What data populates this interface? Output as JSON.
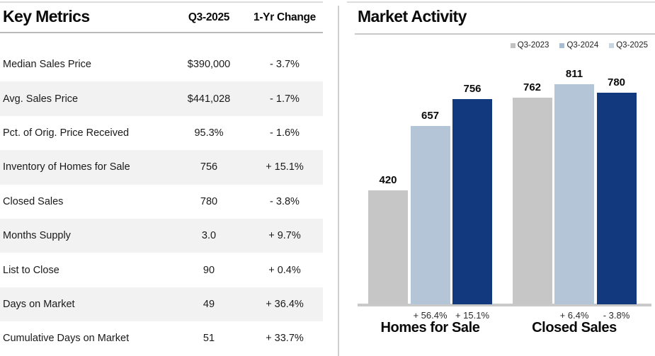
{
  "key_metrics": {
    "title": "Key Metrics",
    "columns": [
      "Q3-2025",
      "1-Yr Change"
    ],
    "rows": [
      {
        "label": "Median Sales Price",
        "value": "$390,000",
        "change": "- 3.7%"
      },
      {
        "label": "Avg. Sales Price",
        "value": "$441,028",
        "change": "- 1.7%"
      },
      {
        "label": "Pct. of Orig. Price Received",
        "value": "95.3%",
        "change": "- 1.6%"
      },
      {
        "label": "Inventory of Homes for Sale",
        "value": "756",
        "change": "+ 15.1%"
      },
      {
        "label": "Closed Sales",
        "value": "780",
        "change": "- 3.8%"
      },
      {
        "label": "Months Supply",
        "value": "3.0",
        "change": "+ 9.7%"
      },
      {
        "label": "List to Close",
        "value": "90",
        "change": "+ 0.4%"
      },
      {
        "label": "Days on Market",
        "value": "49",
        "change": "+ 36.4%"
      },
      {
        "label": "Cumulative Days on Market",
        "value": "51",
        "change": "+ 33.7%"
      }
    ],
    "stripe_color": "#f2f2f2"
  },
  "market_activity": {
    "title": "Market Activity",
    "legend": {
      "items": [
        "Q3-2023",
        "Q3-2024",
        "Q3-2025"
      ],
      "swatch_colors": [
        "#c2c2c2",
        "#a9bdd0",
        "#c9d5df"
      ]
    },
    "chart_data": {
      "type": "bar",
      "categories": [
        "Homes for Sale",
        "Closed Sales"
      ],
      "series": [
        {
          "name": "Q3-2023",
          "color": "#c6c6c6",
          "values": [
            420,
            762
          ]
        },
        {
          "name": "Q3-2024",
          "color": "#b3c5d6",
          "values": [
            657,
            811
          ]
        },
        {
          "name": "Q3-2025",
          "color": "#12397e",
          "values": [
            756,
            780
          ]
        }
      ],
      "pct_change_labels": [
        [
          "",
          "+ 56.4%",
          "+ 15.1%"
        ],
        [
          "",
          "+ 6.4%",
          "- 3.8%"
        ]
      ],
      "title": "Market Activity",
      "xlabel": "",
      "ylabel": "",
      "ylim": [
        0,
        850
      ],
      "grid": false,
      "legend_position": "top-right",
      "value_labels": "above-bars"
    }
  }
}
